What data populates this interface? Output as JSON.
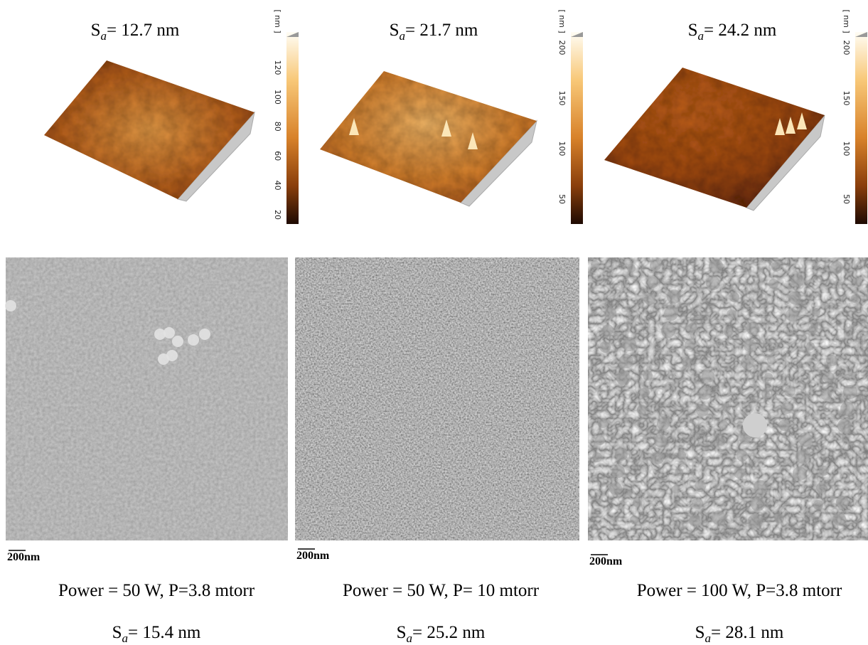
{
  "panels": [
    {
      "afm_sa": {
        "symbol": "S",
        "subscript": "a",
        "value": "= 12.7 nm"
      },
      "colorbar": {
        "unit": "[ nm ]",
        "ticks": [
          "20",
          "40",
          "60",
          "80",
          "100",
          "120"
        ]
      },
      "scale_bar": "200nm",
      "conditions": "Power = 50 W, P=3.8 mtorr",
      "sem_sa": {
        "symbol": "S",
        "subscript": "a",
        "value": "= 15.4 nm"
      }
    },
    {
      "afm_sa": {
        "symbol": "S",
        "subscript": "a",
        "value": "= 21.7 nm"
      },
      "colorbar": {
        "unit": "[ nm ]",
        "ticks": [
          "50",
          "100",
          "150",
          "200"
        ]
      },
      "scale_bar": "200nm",
      "conditions": "Power = 50 W, P= 10 mtorr",
      "sem_sa": {
        "symbol": "S",
        "subscript": "a",
        "value": "= 25.2 nm"
      }
    },
    {
      "afm_sa": {
        "symbol": "S",
        "subscript": "a",
        "value": "= 24.2 nm"
      },
      "colorbar": {
        "unit": "[ nm ]",
        "ticks": [
          "50",
          "100",
          "150",
          "200"
        ]
      },
      "scale_bar": "200nm",
      "conditions": "Power = 100 W, P=3.8 mtorr",
      "sem_sa": {
        "symbol": "S",
        "subscript": "a",
        "value": "= 28.1 nm"
      }
    }
  ]
}
